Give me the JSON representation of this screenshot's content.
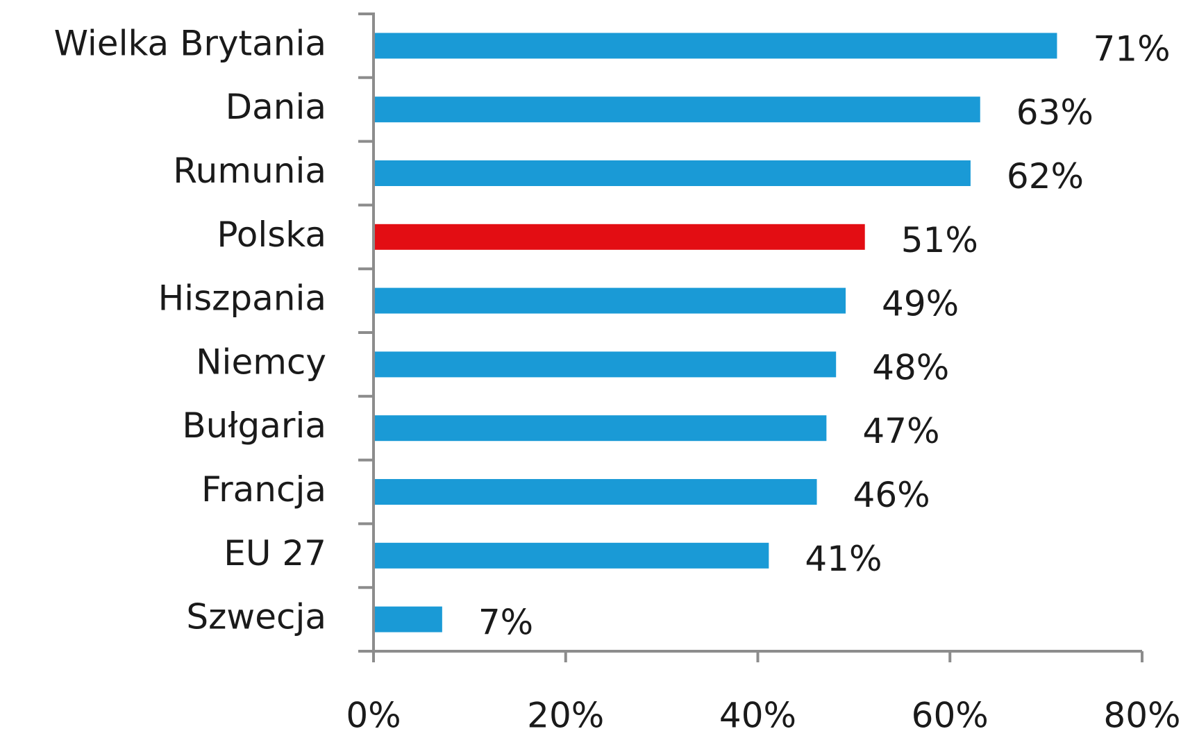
{
  "chart_data": {
    "type": "bar",
    "orientation": "horizontal",
    "categories": [
      "Wielka Brytania",
      "Dania",
      "Rumunia",
      "Polska",
      "Hiszpania",
      "Niemcy",
      "Bułgaria",
      "Francja",
      "EU 27",
      "Szwecja"
    ],
    "values": [
      71,
      63,
      62,
      51,
      49,
      48,
      47,
      46,
      41,
      7
    ],
    "value_labels": [
      "71%",
      "63%",
      "62%",
      "51%",
      "49%",
      "48%",
      "47%",
      "46%",
      "41%",
      "7%"
    ],
    "colors": [
      "#1a9ad6",
      "#1a9ad6",
      "#1a9ad6",
      "#e30d13",
      "#1a9ad6",
      "#1a9ad6",
      "#1a9ad6",
      "#1a9ad6",
      "#1a9ad6",
      "#1a9ad6"
    ],
    "xlim": [
      0,
      80
    ],
    "xticks": [
      {
        "value": 0,
        "label": "0%"
      },
      {
        "value": 20,
        "label": "20%"
      },
      {
        "value": 40,
        "label": "40%"
      },
      {
        "value": 60,
        "label": "60%"
      },
      {
        "value": 80,
        "label": "80%"
      }
    ],
    "grid": false
  }
}
